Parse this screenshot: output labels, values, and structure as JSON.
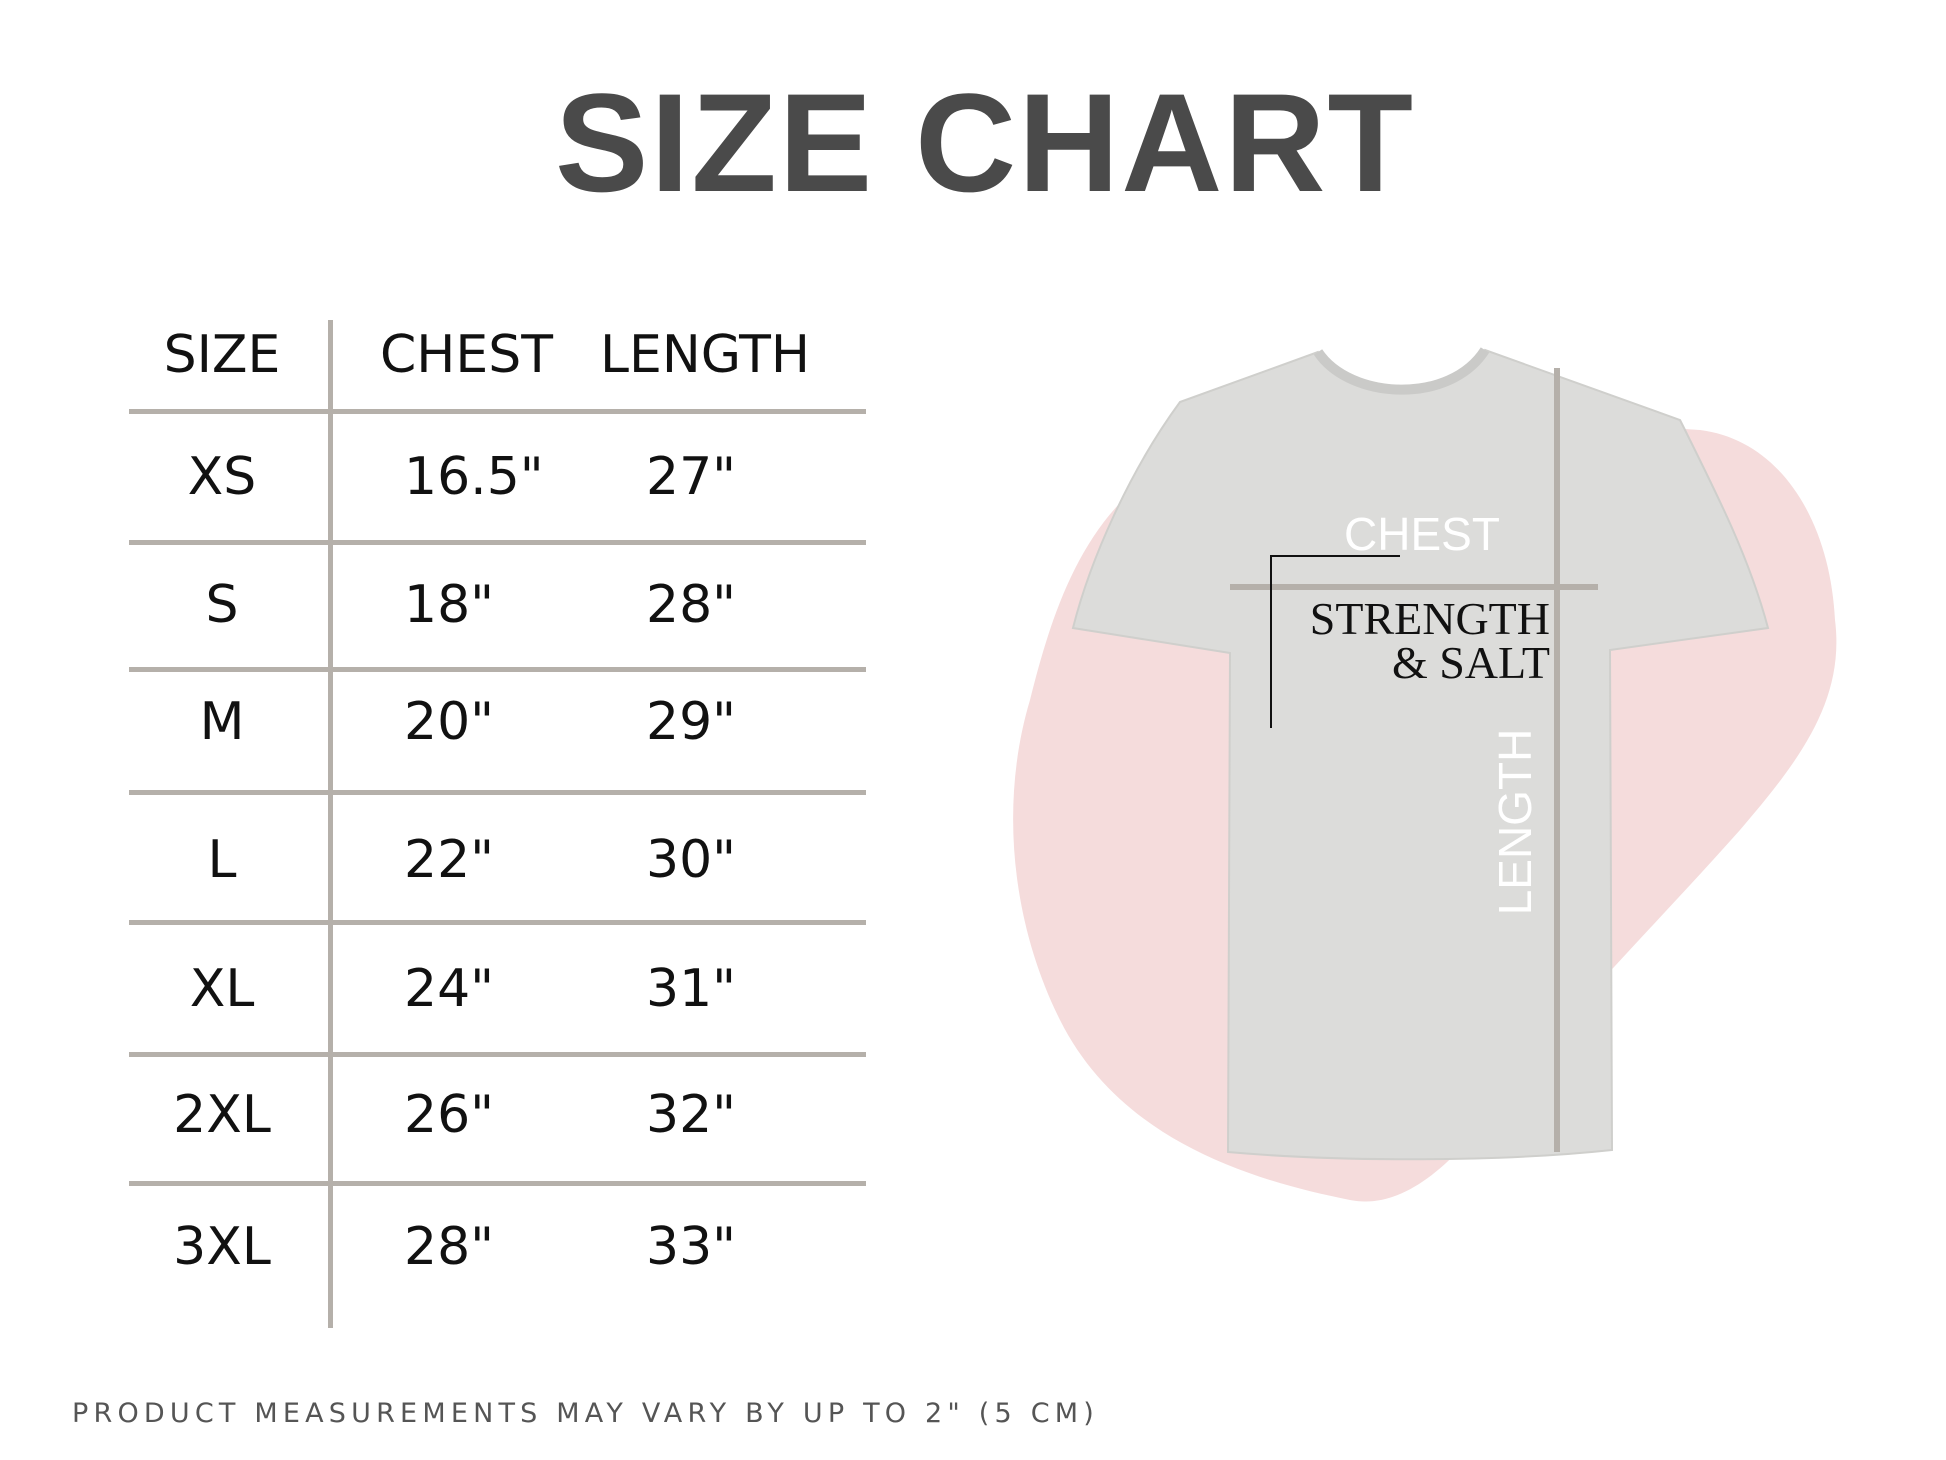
{
  "title": "SIZE CHART",
  "table": {
    "headers": [
      "SIZE",
      "CHEST",
      "LENGTH"
    ],
    "rows": [
      {
        "size": "XS",
        "chest": "16.5\"",
        "length": "27\""
      },
      {
        "size": "S",
        "chest": "18\"",
        "length": "28\""
      },
      {
        "size": "M",
        "chest": "20\"",
        "length": "29\""
      },
      {
        "size": "L",
        "chest": "22\"",
        "length": "30\""
      },
      {
        "size": "XL",
        "chest": "24\"",
        "length": "31\""
      },
      {
        "size": "2XL",
        "chest": "26\"",
        "length": "32\""
      },
      {
        "size": "3XL",
        "chest": "28\"",
        "length": "33\""
      }
    ]
  },
  "diagram": {
    "chest_label": "CHEST",
    "length_label": "LENGTH",
    "shirt_print_line1": "STRENGTH",
    "shirt_print_line2": "& SALT"
  },
  "footer": "PRODUCT MEASUREMENTS MAY VARY BY UP TO 2\" (5 CM)",
  "colors": {
    "title": "#4a4a4a",
    "lines": "#b5b0aa",
    "splash": "#f5dcdc",
    "shirt": "#dcdcda"
  }
}
